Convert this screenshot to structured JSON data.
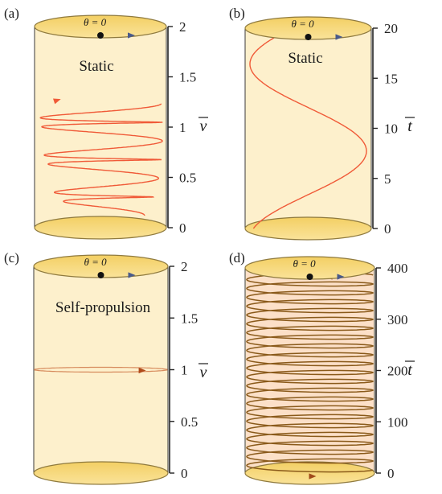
{
  "panels": [
    {
      "id": "a",
      "label": "(a)",
      "title": "Static",
      "top_label": "θ = 0",
      "axis_symbol": "v",
      "ticks": [
        "2",
        "1.5",
        "1",
        "0.5",
        "0"
      ],
      "tick_values": [
        2,
        1.5,
        1,
        0.5,
        0
      ],
      "ylim": [
        0,
        2
      ],
      "trajectory": "static-wobble",
      "curve_color": "#f05a38"
    },
    {
      "id": "b",
      "label": "(b)",
      "title": "Static",
      "top_label": "θ = 0",
      "axis_symbol": "t",
      "ticks": [
        "20",
        "15",
        "10",
        "5",
        "0"
      ],
      "tick_values": [
        20,
        15,
        10,
        5,
        0
      ],
      "ylim": [
        0,
        20
      ],
      "trajectory": "static-sine",
      "curve_color": "#f05a38"
    },
    {
      "id": "c",
      "label": "(c)",
      "title": "Self-propulsion",
      "top_label": "θ = 0",
      "axis_symbol": "v",
      "ticks": [
        "2",
        "1.5",
        "1",
        "0.5",
        "0"
      ],
      "tick_values": [
        2,
        1.5,
        1,
        0.5,
        0
      ],
      "ylim": [
        0,
        2
      ],
      "trajectory": "self-propelled-ring",
      "curve_color": "#d68a5c"
    },
    {
      "id": "d",
      "label": "(d)",
      "title": "",
      "top_label": "θ = 0",
      "axis_symbol": "t",
      "ticks": [
        "400",
        "300",
        "200",
        "100",
        "0"
      ],
      "tick_values": [
        400,
        300,
        200,
        100,
        0
      ],
      "ylim": [
        0,
        400
      ],
      "trajectory": "helix",
      "curve_color": "#8a5a1a"
    }
  ],
  "colors": {
    "cylinder_fill": "#fdf0cc",
    "cap_fill": "#f6d56c",
    "cap_edge": "#8f7a3e",
    "axis": "#222222",
    "marker": "#111111",
    "arrow_blue": "#4a5a8a",
    "helix_band": "#fbd4c4"
  }
}
